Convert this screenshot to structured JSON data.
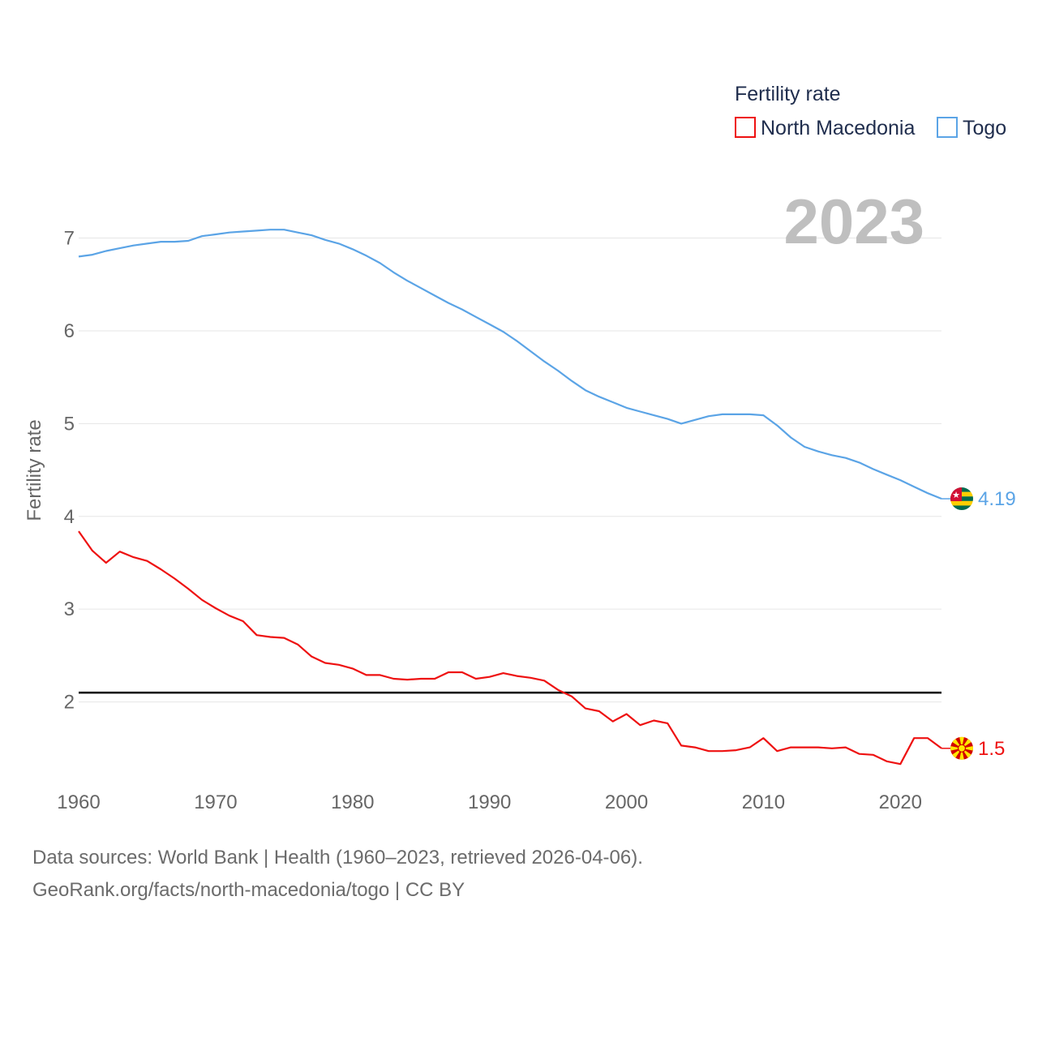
{
  "chart_data": {
    "type": "line",
    "year_label": "2023",
    "ylabel": "Fertility rate",
    "legend_title": "Fertility rate",
    "xlim": [
      1960,
      2023
    ],
    "ylim": [
      1.0,
      7.8
    ],
    "x_ticks": [
      "1960",
      "1970",
      "1980",
      "1990",
      "2000",
      "2010",
      "2020"
    ],
    "y_ticks": [
      "2",
      "3",
      "4",
      "5",
      "6",
      "7"
    ],
    "reference_line": 2.1,
    "x": [
      1960,
      1961,
      1962,
      1963,
      1964,
      1965,
      1966,
      1967,
      1968,
      1969,
      1970,
      1971,
      1972,
      1973,
      1974,
      1975,
      1976,
      1977,
      1978,
      1979,
      1980,
      1981,
      1982,
      1983,
      1984,
      1985,
      1986,
      1987,
      1988,
      1989,
      1990,
      1991,
      1992,
      1993,
      1994,
      1995,
      1996,
      1997,
      1998,
      1999,
      2000,
      2001,
      2002,
      2003,
      2004,
      2005,
      2006,
      2007,
      2008,
      2009,
      2010,
      2011,
      2012,
      2013,
      2014,
      2015,
      2016,
      2017,
      2018,
      2019,
      2020,
      2021,
      2022,
      2023
    ],
    "series": [
      {
        "name": "North Macedonia",
        "color": "#ee1111",
        "end_label": "1.5",
        "flag": "north-macedonia-flag-icon",
        "values": [
          3.84,
          3.63,
          3.5,
          3.62,
          3.56,
          3.52,
          3.43,
          3.33,
          3.22,
          3.1,
          3.01,
          2.93,
          2.87,
          2.72,
          2.7,
          2.69,
          2.62,
          2.49,
          2.42,
          2.4,
          2.36,
          2.29,
          2.29,
          2.25,
          2.24,
          2.25,
          2.25,
          2.32,
          2.32,
          2.25,
          2.27,
          2.31,
          2.28,
          2.26,
          2.23,
          2.13,
          2.06,
          1.93,
          1.9,
          1.79,
          1.87,
          1.75,
          1.8,
          1.77,
          1.53,
          1.51,
          1.47,
          1.47,
          1.48,
          1.51,
          1.61,
          1.47,
          1.51,
          1.51,
          1.51,
          1.5,
          1.51,
          1.44,
          1.43,
          1.36,
          1.33,
          1.61,
          1.61,
          1.5
        ]
      },
      {
        "name": "Togo",
        "color": "#5ba4e6",
        "end_label": "4.19",
        "flag": "togo-flag-icon",
        "values": [
          6.8,
          6.82,
          6.86,
          6.89,
          6.92,
          6.94,
          6.96,
          6.96,
          6.97,
          7.02,
          7.04,
          7.06,
          7.07,
          7.08,
          7.09,
          7.09,
          7.06,
          7.03,
          6.98,
          6.94,
          6.88,
          6.81,
          6.73,
          6.63,
          6.54,
          6.46,
          6.38,
          6.3,
          6.23,
          6.15,
          6.07,
          5.99,
          5.89,
          5.78,
          5.67,
          5.57,
          5.46,
          5.36,
          5.29,
          5.23,
          5.17,
          5.13,
          5.09,
          5.05,
          5.0,
          5.04,
          5.08,
          5.1,
          5.1,
          5.1,
          5.09,
          4.98,
          4.85,
          4.75,
          4.7,
          4.66,
          4.63,
          4.58,
          4.51,
          4.45,
          4.39,
          4.32,
          4.25,
          4.19
        ]
      }
    ]
  },
  "footer": {
    "line1": "Data sources: World Bank | Health (1960–2023, retrieved 2026-04-06).",
    "line2": "GeoRank.org/facts/north-macedonia/togo | CC BY"
  }
}
